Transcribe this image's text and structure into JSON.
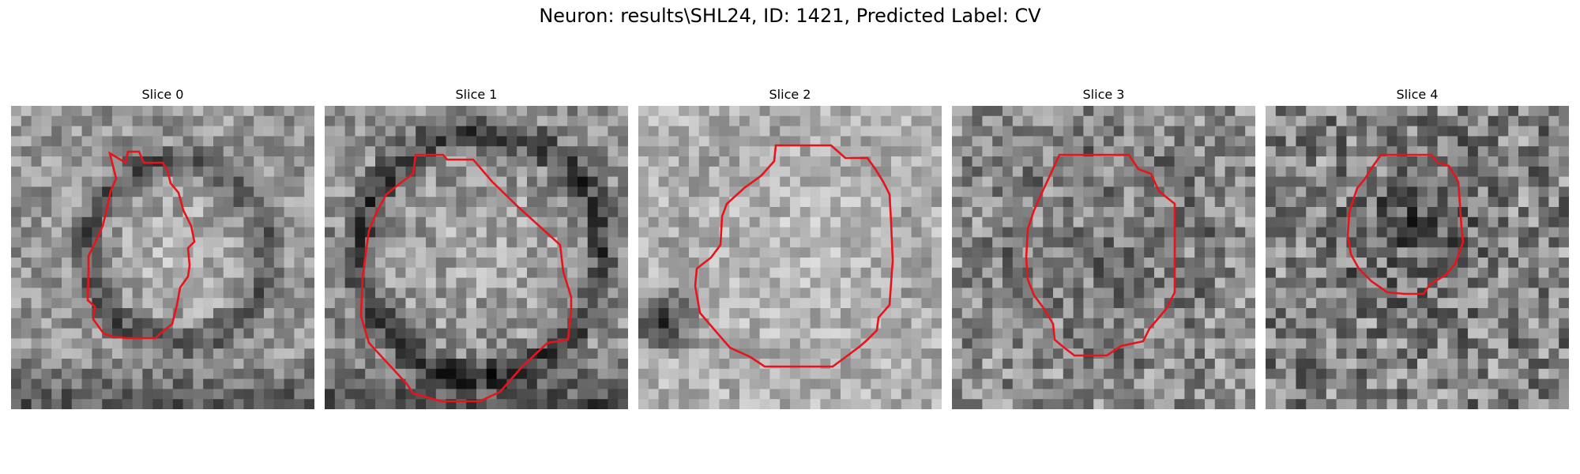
{
  "figure": {
    "title": "Neuron: results\\SHL24, ID: 1421, Predicted Label: CV"
  },
  "colors": {
    "contour": "#e8141b",
    "background": "#ffffff"
  },
  "panels": [
    {
      "title": "Slice 0"
    },
    {
      "title": "Slice 1"
    },
    {
      "title": "Slice 2"
    },
    {
      "title": "Slice 3"
    },
    {
      "title": "Slice 4"
    }
  ]
}
